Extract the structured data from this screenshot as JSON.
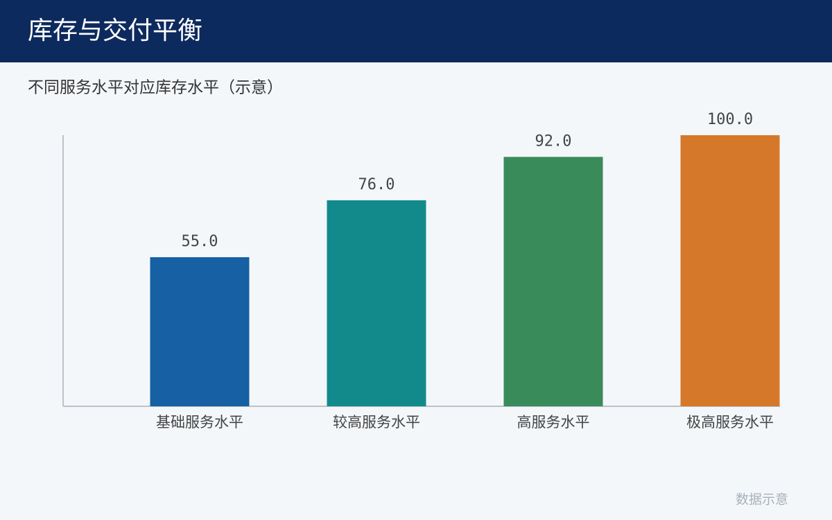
{
  "chart_data": {
    "type": "bar",
    "title": "库存与交付平衡",
    "subtitle": "不同服务水平对应库存水平（示意）",
    "categories": [
      "基础服务水平",
      "较高服务水平",
      "高服务水平",
      "极高服务水平"
    ],
    "values": [
      55,
      76,
      92,
      100
    ],
    "value_labels": [
      "55.0",
      "76.0",
      "92.0",
      "100.0"
    ],
    "colors": [
      "#1660a3",
      "#128a8c",
      "#3a8b5a",
      "#d6782a"
    ],
    "ylim": [
      0,
      100
    ],
    "grid": false,
    "footnote": "数据示意"
  }
}
